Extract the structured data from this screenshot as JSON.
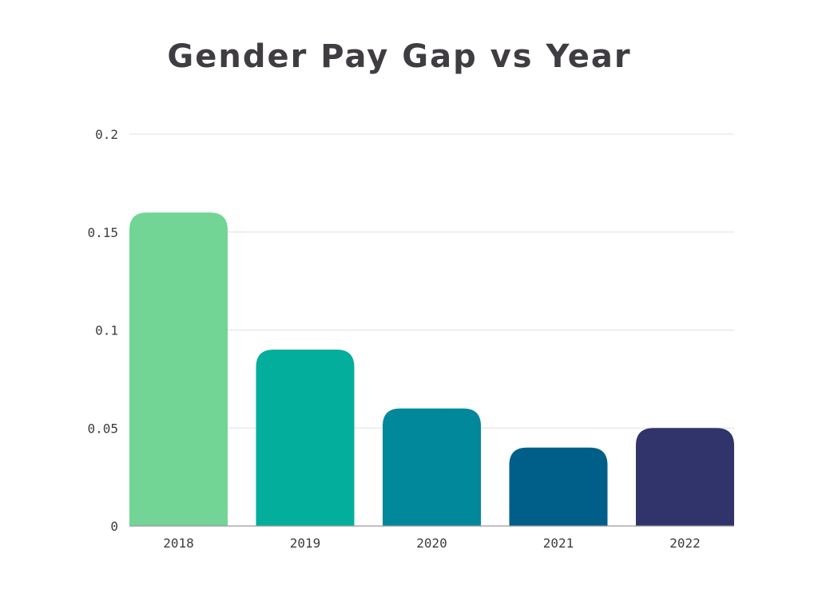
{
  "chart_data": {
    "type": "bar",
    "title": "Gender Pay Gap vs Year",
    "xlabel": "",
    "ylabel": "",
    "categories": [
      "2018",
      "2019",
      "2020",
      "2021",
      "2022"
    ],
    "values": [
      0.16,
      0.09,
      0.06,
      0.04,
      0.05
    ],
    "colors": [
      "#72d595",
      "#03ae9c",
      "#02889b",
      "#005f89",
      "#31346a"
    ],
    "ylim": [
      0,
      0.2
    ],
    "yticks": [
      0,
      0.05,
      0.1,
      0.15,
      0.2
    ],
    "ytick_labels": [
      "0",
      "0.05",
      "0.1",
      "0.15",
      "0.2"
    ],
    "grid": true,
    "legend": "none"
  }
}
